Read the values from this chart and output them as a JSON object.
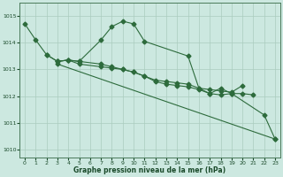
{
  "title": "Graphe pression niveau de la mer (hPa)",
  "bg_color": "#cce8e0",
  "grid_color": "#aaccbe",
  "line_color": "#2d6b3c",
  "ylim": [
    1009.7,
    1015.5
  ],
  "yticks": [
    1010,
    1011,
    1012,
    1013,
    1014,
    1015
  ],
  "xlim": [
    -0.5,
    23.5
  ],
  "xticks": [
    0,
    1,
    2,
    3,
    4,
    5,
    6,
    7,
    8,
    9,
    10,
    11,
    12,
    13,
    14,
    15,
    16,
    17,
    18,
    19,
    20,
    21,
    22,
    23
  ],
  "lines": {
    "line1_x": [
      0,
      1,
      2,
      3,
      4,
      5,
      7,
      8,
      9,
      10,
      11,
      15,
      16,
      17,
      18,
      19,
      22,
      23
    ],
    "line1_y": [
      1014.7,
      1014.1,
      1013.55,
      1013.3,
      1013.35,
      1013.3,
      1014.1,
      1014.6,
      1014.8,
      1014.7,
      1014.05,
      1013.5,
      1012.3,
      1012.1,
      1012.3,
      1012.1,
      1011.3,
      1010.4
    ],
    "line2_x": [
      2,
      3,
      4,
      5,
      7,
      8,
      9,
      10,
      11,
      12,
      13,
      14,
      15,
      16,
      17,
      18,
      19,
      20
    ],
    "line2_y": [
      1013.55,
      1013.3,
      1013.35,
      1013.3,
      1013.2,
      1013.1,
      1013.0,
      1012.9,
      1012.75,
      1012.6,
      1012.55,
      1012.5,
      1012.45,
      1012.3,
      1012.25,
      1012.2,
      1012.15,
      1012.4
    ],
    "line3_x": [
      3,
      4,
      5,
      7,
      8,
      9,
      10,
      11,
      12,
      13,
      14,
      15,
      16,
      17,
      18,
      19,
      20,
      21
    ],
    "line3_y": [
      1013.3,
      1013.35,
      1013.2,
      1013.1,
      1013.05,
      1013.0,
      1012.9,
      1012.75,
      1012.55,
      1012.45,
      1012.4,
      1012.35,
      1012.25,
      1012.1,
      1012.05,
      1012.1,
      1012.1,
      1012.05
    ],
    "line4_x": [
      3,
      23
    ],
    "line4_y": [
      1013.2,
      1010.4
    ]
  }
}
